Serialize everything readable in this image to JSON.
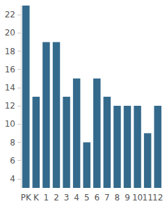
{
  "chart_data": {
    "type": "bar",
    "categories": [
      "PK",
      "K",
      "1",
      "2",
      "3",
      "4",
      "5",
      "6",
      "7",
      "8",
      "9",
      "10",
      "11",
      "12"
    ],
    "values": [
      23,
      13,
      19,
      19,
      13,
      15,
      8,
      15,
      13,
      12,
      12,
      12,
      9,
      12
    ],
    "color": "#346a8c",
    "ylim": [
      3,
      23
    ],
    "yticks": [
      4,
      6,
      8,
      10,
      12,
      14,
      16,
      18,
      20,
      22
    ],
    "grid": false
  }
}
